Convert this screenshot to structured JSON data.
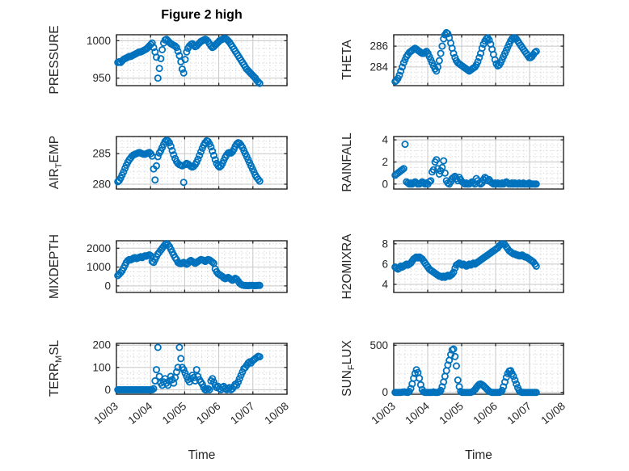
{
  "title": "Figure 2 high",
  "xlabel": "Time",
  "style": {
    "marker_color": "#0072BD",
    "axis_color": "#262626",
    "major_grid_color": "#c8c8c8",
    "minor_grid_color": "#d2d2d2",
    "background": "#ffffff"
  },
  "x_axis": {
    "range": [
      0,
      5
    ],
    "ticks": [
      0,
      1,
      2,
      3,
      4,
      5
    ],
    "labels": [
      "10/03",
      "10/04",
      "10/05",
      "10/06",
      "10/07",
      "10/08"
    ],
    "minor_step": 0.16667
  },
  "x_days": [
    0.04,
    0.082,
    0.124,
    0.166,
    0.208,
    0.25,
    0.292,
    0.334,
    0.376,
    0.418,
    0.46,
    0.502,
    0.544,
    0.586,
    0.628,
    0.67,
    0.712,
    0.754,
    0.796,
    0.838,
    0.88,
    0.922,
    0.964,
    1.006,
    1.048,
    1.09,
    1.132,
    1.174,
    1.216,
    1.258,
    1.3,
    1.342,
    1.384,
    1.426,
    1.468,
    1.51,
    1.552,
    1.594,
    1.636,
    1.678,
    1.72,
    1.762,
    1.804,
    1.846,
    1.888,
    1.93,
    1.972,
    2.014,
    2.056,
    2.098,
    2.14,
    2.182,
    2.224,
    2.266,
    2.308,
    2.35,
    2.392,
    2.434,
    2.476,
    2.518,
    2.56,
    2.602,
    2.644,
    2.686,
    2.728,
    2.77,
    2.812,
    2.854,
    2.896,
    2.938,
    2.98,
    3.022,
    3.064,
    3.106,
    3.148,
    3.19,
    3.232,
    3.274,
    3.316,
    3.358,
    3.4,
    3.442,
    3.484,
    3.526,
    3.568,
    3.61,
    3.652,
    3.694,
    3.736,
    3.778,
    3.82,
    3.862,
    3.904,
    3.946,
    3.988,
    4.03,
    4.072,
    4.114,
    4.156,
    4.198
  ],
  "chart_data": [
    {
      "type": "scatter",
      "name": "PRESSURE",
      "ylabel_segments": [
        {
          "text": "PRESSURE",
          "sub": false
        }
      ],
      "ylim": [
        940,
        1008
      ],
      "yticks": [
        950,
        1000
      ],
      "y_minor": [
        960,
        970,
        980,
        990
      ],
      "show_x_tick_labels": false,
      "y": [
        971,
        972,
        971,
        973,
        975,
        976,
        977,
        978,
        979,
        979,
        980,
        981,
        982,
        983,
        984,
        985,
        985,
        986,
        987,
        988,
        989,
        991,
        993,
        995,
        997,
        991,
        985,
        978,
        950,
        963,
        976,
        988,
        997,
        1001,
        1002,
        1000,
        998,
        996,
        995,
        994,
        993,
        991,
        986,
        980,
        972,
        962,
        957,
        975,
        985,
        990,
        993,
        995,
        996,
        994,
        992,
        993,
        995,
        997,
        999,
        1000,
        1001,
        1002,
        1001,
        999,
        996,
        993,
        991,
        992,
        994,
        996,
        998,
        1000,
        1001,
        1002,
        1003,
        1003,
        1002,
        1000,
        998,
        995,
        992,
        989,
        986,
        983,
        980,
        977,
        974,
        971,
        968,
        965,
        962,
        960,
        958,
        956,
        954,
        952,
        950,
        947,
        945,
        943
      ]
    },
    {
      "type": "scatter",
      "name": "THETA",
      "ylabel_segments": [
        {
          "text": "THETA",
          "sub": false
        }
      ],
      "ylim": [
        282.2,
        287.1
      ],
      "yticks": [
        284,
        286
      ],
      "y_minor": [
        282.5,
        283,
        283.5,
        284.5,
        285,
        285.5,
        286.5,
        287
      ],
      "show_x_tick_labels": false,
      "y": [
        282.6,
        282.7,
        282.9,
        283.2,
        283.6,
        284,
        284.4,
        284.7,
        285,
        285.2,
        285.4,
        285.5,
        285.6,
        285.7,
        285.8,
        285.7,
        285.6,
        285.5,
        285.4,
        285.3,
        285.3,
        285.4,
        285.5,
        285.3,
        285,
        284.7,
        284.4,
        284.1,
        283.8,
        283.6,
        284,
        284.6,
        285.3,
        286,
        286.7,
        287.1,
        287.3,
        287.2,
        286.8,
        286.3,
        285.8,
        285.3,
        284.9,
        284.6,
        284.4,
        284.3,
        284.2,
        284.1,
        284,
        283.9,
        283.8,
        283.7,
        283.6,
        283.7,
        283.8,
        283.9,
        284,
        284.2,
        284.5,
        284.9,
        285.3,
        285.8,
        286.2,
        286.5,
        286.7,
        286.8,
        286.6,
        286.2,
        285.7,
        285.2,
        284.7,
        284.3,
        284.1,
        284.2,
        284.4,
        284.7,
        285,
        285.3,
        285.6,
        285.9,
        286.2,
        286.5,
        286.7,
        286.8,
        286.8,
        286.7,
        286.5,
        286.3,
        286.1,
        285.9,
        285.7,
        285.5,
        285.3,
        285.1,
        284.9,
        284.9,
        285,
        285.2,
        285.4,
        285.5
      ]
    },
    {
      "type": "scatter",
      "name": "AIR_TEMP",
      "ylabel_segments": [
        {
          "text": "AIR",
          "sub": false
        },
        {
          "text": "T",
          "sub": true
        },
        {
          "text": "EMP",
          "sub": false
        }
      ],
      "ylim": [
        279.2,
        287.8
      ],
      "yticks": [
        280,
        285
      ],
      "y_minor": [
        281,
        282,
        283,
        284,
        286,
        287
      ],
      "show_x_tick_labels": false,
      "y": [
        280.4,
        280.6,
        281,
        281.5,
        282,
        282.6,
        283.1,
        283.6,
        284,
        284.3,
        284.6,
        284.8,
        284.9,
        285,
        285.1,
        285.2,
        285.1,
        285,
        284.9,
        284.9,
        285,
        285.1,
        285.2,
        285,
        284.6,
        282.5,
        280.7,
        283,
        284.5,
        285.1,
        285.5,
        286,
        286.5,
        287,
        287.2,
        287.1,
        286.8,
        286.2,
        285.5,
        284.8,
        284.2,
        283.7,
        283.4,
        283.2,
        283.1,
        283,
        280.3,
        283.2,
        283.4,
        283.3,
        283.1,
        282.9,
        282.8,
        282.9,
        283.2,
        283.6,
        284.1,
        284.7,
        285.3,
        285.9,
        286.4,
        286.8,
        287.1,
        287,
        286.6,
        286.1,
        285.4,
        284.7,
        284,
        283.4,
        283,
        282.8,
        283,
        283.4,
        283.9,
        284.4,
        284.8,
        285.1,
        285.2,
        285.1,
        285.3,
        285.7,
        286.2,
        286.6,
        286.8,
        286.7,
        286.4,
        286,
        285.5,
        285,
        284.5,
        284,
        283.5,
        283,
        282.5,
        282,
        281.5,
        281.1,
        280.8,
        280.5
      ]
    },
    {
      "type": "scatter",
      "name": "RAINFALL",
      "ylabel_segments": [
        {
          "text": "RAINFALL",
          "sub": false
        }
      ],
      "ylim": [
        -0.45,
        4.3
      ],
      "yticks": [
        0,
        2,
        4
      ],
      "y_minor": [
        0.5,
        1,
        1.5,
        2.5,
        3,
        3.5
      ],
      "show_x_tick_labels": false,
      "y": [
        0.8,
        0.9,
        1,
        1.1,
        1.2,
        1.3,
        1.4,
        3.6,
        0.2,
        0.1,
        0,
        0.1,
        0,
        0.1,
        0.2,
        0.1,
        0,
        0,
        0.1,
        0.2,
        0.1,
        0,
        0.1,
        0,
        0.2,
        0.3,
        1.1,
        1.3,
        2,
        2.2,
        1.4,
        0.9,
        1.2,
        1.5,
        2.1,
        1,
        0.3,
        0.1,
        0,
        0.2,
        0.5,
        0.6,
        0.7,
        0.5,
        0.3,
        0.6,
        0.4,
        0.2,
        0.1,
        0,
        0.1,
        0,
        0,
        0.1,
        0.2,
        0.1,
        0,
        0.5,
        0.3,
        0.1,
        0,
        0.1,
        0.4,
        0.6,
        0.5,
        0.3,
        0.4,
        0.2,
        0.1,
        0,
        0.1,
        0,
        0.1,
        0,
        0,
        0.1,
        0,
        0.1,
        0.2,
        0.1,
        0,
        0,
        0.1,
        0,
        0.1,
        0,
        0,
        0.1,
        0,
        0,
        0.1,
        0,
        0,
        0,
        0.1,
        0,
        0,
        0,
        0,
        0
      ]
    },
    {
      "type": "scatter",
      "name": "MIXDEPTH",
      "ylabel_segments": [
        {
          "text": "MIXDEPTH",
          "sub": false
        }
      ],
      "ylim": [
        -350,
        2400
      ],
      "yticks": [
        0,
        1000,
        2000
      ],
      "y_minor": [
        -250,
        250,
        500,
        750,
        1250,
        1500,
        1750,
        2250
      ],
      "show_x_tick_labels": false,
      "y": [
        550,
        620,
        700,
        800,
        950,
        1100,
        1250,
        1350,
        1400,
        1380,
        1420,
        1480,
        1500,
        1450,
        1480,
        1520,
        1550,
        1500,
        1560,
        1600,
        1580,
        1620,
        1650,
        1600,
        1300,
        1250,
        1400,
        1550,
        1700,
        1800,
        1900,
        2000,
        2100,
        2200,
        2250,
        2200,
        2100,
        1950,
        1800,
        1650,
        1500,
        1400,
        1250,
        1200,
        1180,
        1220,
        1250,
        1200,
        1150,
        1200,
        1300,
        1350,
        1300,
        1250,
        1200,
        1250,
        1300,
        1350,
        1400,
        1380,
        1350,
        1300,
        1350,
        1400,
        1380,
        1320,
        1260,
        1200,
        900,
        750,
        650,
        600,
        550,
        500,
        420,
        380,
        420,
        450,
        400,
        350,
        300,
        350,
        400,
        350,
        250,
        150,
        80,
        50,
        30,
        20,
        15,
        10,
        20,
        30,
        25,
        15,
        10,
        20,
        30,
        25
      ]
    },
    {
      "type": "scatter",
      "name": "H2OMIXRA",
      "ylabel_segments": [
        {
          "text": "H2OMIXRA",
          "sub": false
        }
      ],
      "ylim": [
        3.2,
        8.3
      ],
      "yticks": [
        4,
        6,
        8
      ],
      "y_minor": [
        3.5,
        4.5,
        5,
        5.5,
        6.5,
        7,
        7.5
      ],
      "show_x_tick_labels": false,
      "y": [
        5.7,
        5.6,
        5.5,
        5.6,
        5.8,
        5.7,
        5.8,
        5.9,
        6,
        5.9,
        6,
        6.1,
        6.3,
        6.5,
        6.6,
        6.7,
        6.6,
        6.7,
        6.6,
        6.5,
        6.3,
        6.1,
        5.9,
        5.7,
        5.5,
        5.4,
        5.3,
        5.2,
        5.1,
        5,
        4.9,
        4.8,
        4.8,
        4.7,
        4.8,
        4.7,
        4.8,
        4.9,
        4.8,
        4.9,
        5,
        5.2,
        5.6,
        5.9,
        6,
        6.1,
        6,
        5.9,
        6,
        5.9,
        5.8,
        5.9,
        6,
        5.9,
        6,
        6.1,
        6,
        6.1,
        6.2,
        6.3,
        6.4,
        6.5,
        6.6,
        6.7,
        6.8,
        6.9,
        7,
        7.1,
        7.2,
        7.3,
        7.4,
        7.5,
        7.6,
        7.8,
        7.9,
        8,
        8,
        7.9,
        7.7,
        7.5,
        7.3,
        7.2,
        7.1,
        7,
        7,
        6.9,
        6.9,
        6.8,
        6.8,
        6.9,
        6.8,
        6.7,
        6.7,
        6.6,
        6.5,
        6.4,
        6.3,
        6.2,
        6,
        5.8
      ]
    },
    {
      "type": "scatter",
      "name": "TERR_MSL",
      "ylabel_segments": [
        {
          "text": "TERR",
          "sub": false
        },
        {
          "text": "M",
          "sub": true
        },
        {
          "text": "SL",
          "sub": false
        }
      ],
      "ylim": [
        -20,
        208
      ],
      "yticks": [
        0,
        100,
        200
      ],
      "y_minor": [
        25,
        50,
        75,
        125,
        150,
        175
      ],
      "show_x_tick_labels": true,
      "y": [
        0,
        0,
        0,
        0,
        0,
        0,
        0,
        0,
        0,
        0,
        0,
        0,
        0,
        0,
        0,
        0,
        0,
        0,
        0,
        0,
        0,
        0,
        0,
        0,
        0,
        5,
        40,
        90,
        190,
        60,
        30,
        20,
        35,
        50,
        30,
        20,
        40,
        60,
        45,
        30,
        55,
        80,
        100,
        190,
        140,
        100,
        90,
        75,
        60,
        45,
        35,
        50,
        65,
        55,
        40,
        90,
        60,
        45,
        35,
        25,
        10,
        0,
        0,
        5,
        0,
        40,
        50,
        35,
        20,
        10,
        15,
        5,
        0,
        10,
        15,
        5,
        0,
        5,
        10,
        0,
        5,
        15,
        25,
        20,
        35,
        50,
        65,
        80,
        95,
        100,
        110,
        120,
        125,
        120,
        130,
        135,
        140,
        145,
        150,
        148
      ]
    },
    {
      "type": "scatter",
      "name": "SUN_FLUX",
      "ylabel_segments": [
        {
          "text": "SUN",
          "sub": false
        },
        {
          "text": "F",
          "sub": true
        },
        {
          "text": "LUX",
          "sub": false
        }
      ],
      "ylim": [
        -20,
        520
      ],
      "yticks": [
        0,
        500
      ],
      "y_minor": [
        100,
        200,
        300,
        400
      ],
      "show_x_tick_labels": true,
      "y": [
        0,
        0,
        0,
        0,
        0,
        2,
        5,
        3,
        1,
        0,
        10,
        40,
        90,
        150,
        200,
        240,
        210,
        150,
        80,
        30,
        5,
        0,
        0,
        0,
        0,
        0,
        0,
        5,
        0,
        0,
        0,
        5,
        20,
        60,
        110,
        170,
        230,
        290,
        340,
        400,
        450,
        460,
        380,
        280,
        130,
        60,
        10,
        0,
        0,
        0,
        0,
        0,
        0,
        0,
        5,
        15,
        30,
        50,
        70,
        85,
        90,
        80,
        70,
        55,
        40,
        25,
        10,
        5,
        0,
        0,
        0,
        0,
        0,
        0,
        5,
        20,
        60,
        110,
        160,
        200,
        225,
        230,
        200,
        170,
        130,
        90,
        50,
        20,
        5,
        0,
        0,
        0,
        0,
        0,
        0,
        0,
        0,
        0,
        0,
        0
      ]
    }
  ]
}
